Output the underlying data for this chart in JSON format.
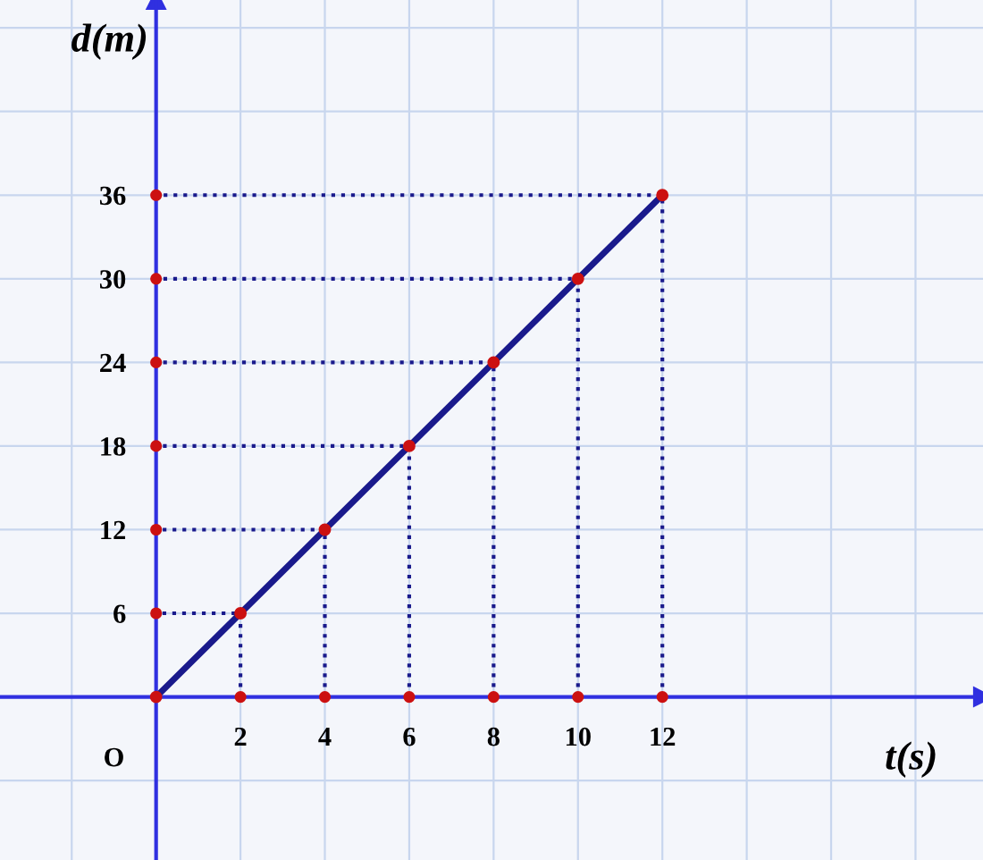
{
  "chart_data": {
    "type": "line",
    "xlabel": "t(s)",
    "ylabel": "d(m)",
    "x": [
      0,
      2,
      4,
      6,
      8,
      10,
      12
    ],
    "series": [
      {
        "color": "#1a1a8c",
        "values": [
          0,
          6,
          12,
          18,
          24,
          30,
          36
        ]
      },
      {
        "color": "#1a1a8c",
        "line_style": "dotted",
        "marker": "none",
        "x": [
          2,
          2,
          0
        ],
        "values": [
          0,
          6,
          6
        ]
      },
      {
        "color": "#1a1a8c",
        "line_style": "dotted",
        "marker": "none",
        "x": [
          4,
          4,
          0
        ],
        "values": [
          0,
          12,
          12
        ]
      },
      {
        "color": "#1a1a8c",
        "line_style": "dotted",
        "marker": "none",
        "x": [
          6,
          6,
          0
        ],
        "values": [
          0,
          18,
          18
        ]
      },
      {
        "color": "#1a1a8c",
        "line_style": "dotted",
        "marker": "none",
        "x": [
          8,
          8,
          0
        ],
        "values": [
          0,
          24,
          24
        ]
      },
      {
        "color": "#1a1a8c",
        "line_style": "dotted",
        "marker": "none",
        "x": [
          10,
          10,
          0
        ],
        "values": [
          0,
          30,
          30
        ]
      },
      {
        "color": "#1a1a8c",
        "line_style": "dotted",
        "marker": "none",
        "x": [
          12,
          12,
          0
        ],
        "values": [
          0,
          36,
          36
        ]
      },
      {
        "type": "scatter",
        "color": "#cc1111",
        "x": [
          2,
          4,
          6,
          8,
          10,
          12
        ],
        "values": [
          0,
          0,
          0,
          0,
          0,
          0
        ]
      },
      {
        "type": "scatter",
        "color": "#cc1111",
        "x": [
          0,
          0,
          0,
          0,
          0,
          0
        ],
        "values": [
          6,
          12,
          18,
          24,
          30,
          36
        ]
      }
    ],
    "xlim": [
      -3.7,
      19.6
    ],
    "ylim": [
      -11.7,
      50
    ],
    "xticks": [
      2,
      4,
      6,
      8,
      10,
      12
    ],
    "yticks": [
      6,
      12,
      18,
      24,
      30,
      36
    ],
    "grid": true,
    "marker": "circle",
    "annotations": [
      "O"
    ]
  }
}
